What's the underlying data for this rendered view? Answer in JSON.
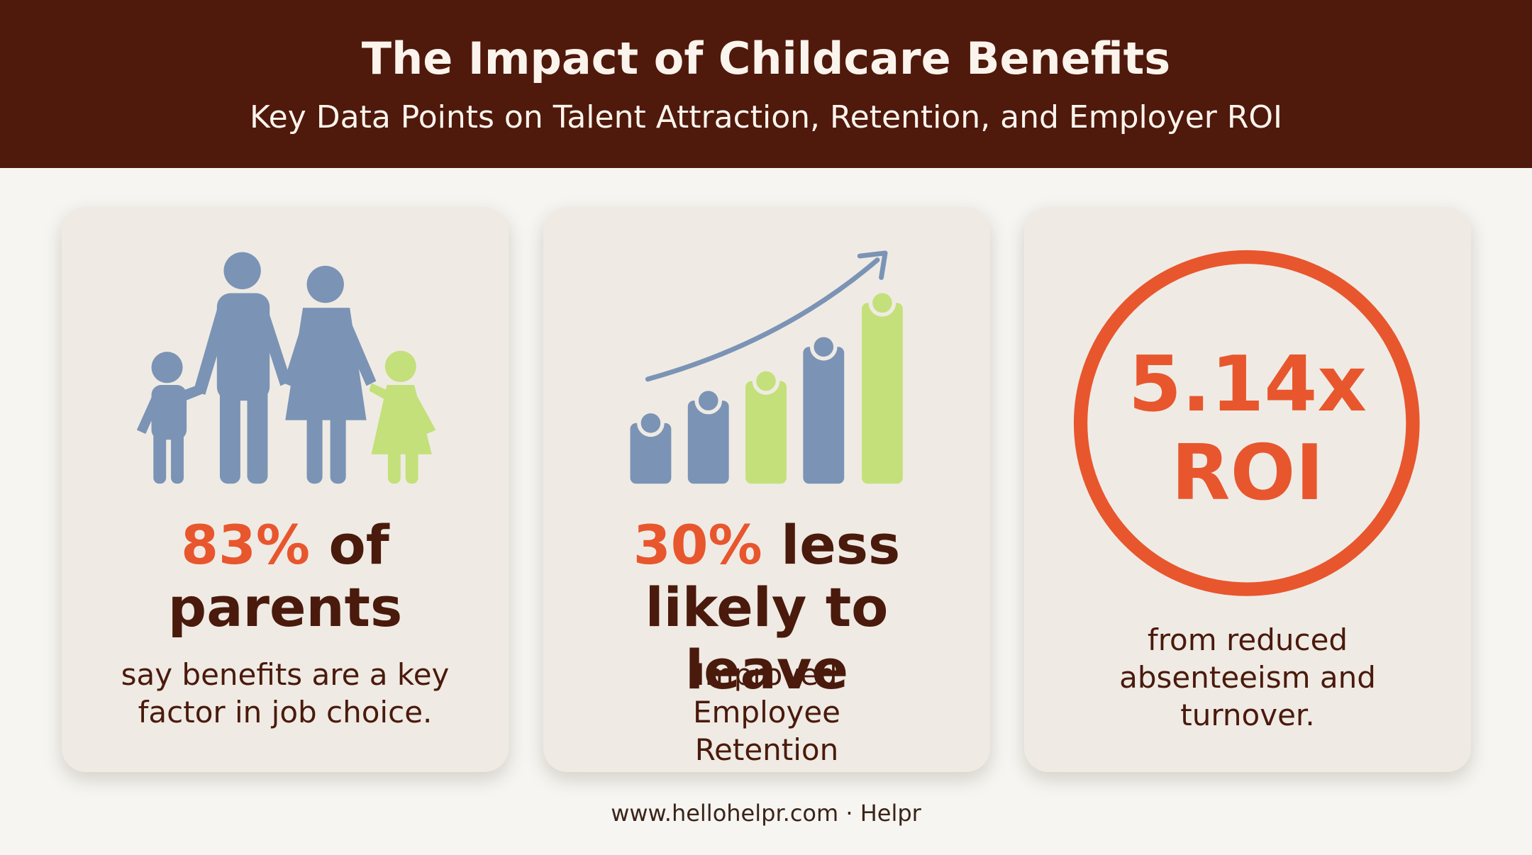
{
  "header": {
    "title": "The Impact of Childcare Benefits",
    "subtitle": "Key Data Points on Talent Attraction, Retention, and Employer ROI"
  },
  "cards": [
    {
      "highlight": "83%",
      "headline": "of parents",
      "description": "say benefits are a key factor in job choice."
    },
    {
      "highlight": "30%",
      "headline": "less likely to leave",
      "description": "Improved Employee Retention"
    },
    {
      "highlight": "5.14x",
      "headline": "ROI",
      "description": "from reduced absenteeism and turnover."
    }
  ],
  "footer": "www.hellohelpr.com · Helpr"
}
